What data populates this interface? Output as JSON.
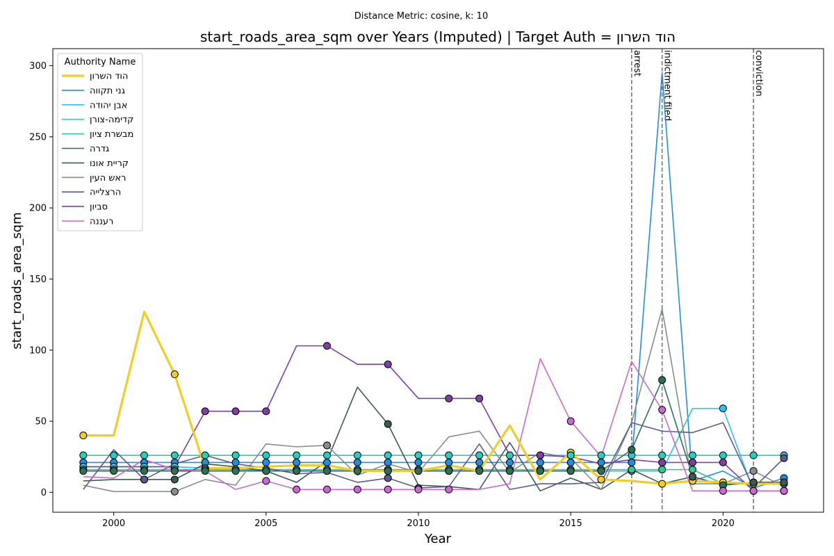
{
  "chart_data": {
    "type": "line",
    "suptitle": "Distance Metric: cosine, k: 10",
    "title": "start_roads_area_sqm over Years (Imputed) | Target Auth = הוד השרון",
    "xlabel": "Year",
    "ylabel": "start_roads_area_sqm",
    "xlim": [
      1998,
      2023.3
    ],
    "ylim": [
      -14,
      312
    ],
    "xticks": [
      2000,
      2005,
      2010,
      2015,
      2020
    ],
    "yticks": [
      0,
      50,
      100,
      150,
      200,
      250,
      300
    ],
    "grid": false,
    "legend": {
      "title": "Authority Name",
      "position": "top-left"
    },
    "events": [
      {
        "x": 2017,
        "label": "arrest"
      },
      {
        "x": 2018,
        "label": "indictment filed"
      },
      {
        "x": 2021,
        "label": "conviction"
      }
    ],
    "x": [
      1999,
      2000,
      2001,
      2002,
      2003,
      2004,
      2005,
      2006,
      2007,
      2008,
      2009,
      2010,
      2011,
      2012,
      2013,
      2014,
      2015,
      2016,
      2017,
      2018,
      2019,
      2020,
      2021,
      2022
    ],
    "series": [
      {
        "name": "הוד השרון",
        "color": "#f2cd24",
        "target": true,
        "values": [
          40,
          40,
          127,
          83,
          17,
          17,
          18,
          19,
          19,
          15,
          15,
          15,
          19,
          15,
          47,
          9,
          28,
          9,
          8,
          6,
          8,
          7,
          6,
          6
        ],
        "markers": [
          0,
          3,
          16,
          17,
          19,
          20,
          21,
          22,
          23
        ]
      },
      {
        "name": "גני תקווה",
        "color": "#1f8de0",
        "values": [
          21,
          21,
          21,
          21,
          21,
          21,
          21,
          21,
          21,
          21,
          21,
          21,
          21,
          21,
          21,
          21,
          21,
          21,
          21,
          295,
          8,
          15,
          3,
          10
        ],
        "markers": [
          0,
          1,
          2,
          3,
          4,
          5,
          6,
          7,
          8,
          9,
          10,
          11,
          12,
          13,
          14,
          15,
          16,
          17,
          18,
          23
        ]
      },
      {
        "name": "אבן יהודה",
        "color": "#2ac2f0",
        "values": [
          18,
          18,
          18,
          18,
          17,
          16,
          15,
          15,
          15,
          15,
          15,
          15,
          15,
          15,
          15,
          15,
          15,
          15,
          15,
          15,
          59,
          59,
          1,
          1
        ],
        "markers": [
          0,
          1,
          2,
          3,
          4,
          5,
          6,
          7,
          8,
          9,
          10,
          11,
          12,
          13,
          14,
          15,
          16,
          17,
          18,
          21,
          23
        ]
      },
      {
        "name": "קדימה-צורן",
        "color": "#1fd2c0",
        "values": [
          26,
          26,
          26,
          26,
          26,
          26,
          26,
          26,
          26,
          26,
          26,
          26,
          26,
          26,
          26,
          26,
          26,
          26,
          26,
          26,
          26,
          26,
          26,
          26
        ],
        "markers": [
          0,
          1,
          2,
          3,
          4,
          5,
          6,
          7,
          8,
          9,
          10,
          11,
          12,
          13,
          14,
          15,
          16,
          17,
          18,
          19,
          20,
          21,
          22,
          23
        ]
      },
      {
        "name": "מבשרת ציון",
        "color": "#2fc79b",
        "values": [
          16,
          16,
          16,
          16,
          16,
          16,
          16,
          16,
          16,
          16,
          16,
          16,
          16,
          16,
          16,
          16,
          16,
          16,
          16,
          16,
          16,
          6,
          6,
          6
        ],
        "markers": [
          0,
          1,
          2,
          3,
          4,
          5,
          6,
          7,
          8,
          9,
          10,
          11,
          12,
          13,
          14,
          15,
          16,
          17,
          18,
          19,
          20,
          23
        ]
      },
      {
        "name": "גדרה",
        "color": "#2e7056",
        "values": [
          15,
          15,
          15,
          15,
          15,
          15,
          15,
          15,
          15,
          15,
          15,
          15,
          15,
          15,
          15,
          15,
          15,
          15,
          30,
          79,
          11,
          5,
          7,
          7
        ],
        "markers": [
          0,
          1,
          2,
          3,
          4,
          5,
          6,
          7,
          8,
          9,
          10,
          11,
          12,
          13,
          14,
          15,
          16,
          17,
          18,
          19,
          20,
          21,
          22,
          23
        ]
      },
      {
        "name": "קריית אונו",
        "color": "#3b5b52",
        "values": [
          8,
          9,
          9,
          9,
          20,
          18,
          15,
          7,
          22,
          74,
          48,
          5,
          4,
          2,
          35,
          1,
          10,
          2,
          16,
          6,
          11,
          5,
          7,
          7
        ],
        "markers": [
          2,
          3,
          10,
          20,
          22,
          23
        ]
      },
      {
        "name": "ראש העין",
        "color": "#858e8b",
        "values": [
          5,
          0.5,
          0.6,
          0.5,
          9,
          5,
          34,
          32,
          33,
          12,
          20,
          14,
          39,
          43,
          14,
          28,
          24,
          2,
          49,
          129,
          6,
          6,
          15,
          4
        ],
        "markers": [
          3,
          8,
          22
        ]
      },
      {
        "name": "הרצלייה",
        "color": "#5a5a96",
        "values": [
          2,
          30,
          9,
          20,
          26,
          20,
          17,
          13,
          14,
          7,
          10,
          3,
          4,
          34,
          2,
          6,
          6,
          7,
          49,
          43,
          42,
          49,
          3,
          24
        ],
        "markers": [
          2,
          10,
          11,
          23
        ]
      },
      {
        "name": "סביון",
        "color": "#7f3fa8",
        "values": [
          18,
          18,
          18,
          18,
          57,
          57,
          57,
          103,
          103,
          90,
          90,
          66,
          66,
          66,
          26,
          26,
          25,
          20,
          23,
          21,
          21,
          21,
          1,
          1
        ],
        "markers": [
          4,
          5,
          6,
          8,
          10,
          12,
          13,
          15,
          19,
          20,
          21,
          22,
          23
        ]
      },
      {
        "name": "רעננה",
        "color": "#c86ad0",
        "values": [
          11,
          10,
          23,
          16,
          15,
          2,
          8,
          2,
          2,
          2,
          2,
          2,
          2,
          2,
          6,
          94,
          50,
          25,
          92,
          58,
          1,
          1,
          1,
          1
        ],
        "markers": [
          6,
          7,
          8,
          9,
          10,
          11,
          12,
          16,
          19,
          21,
          22,
          23
        ]
      }
    ]
  }
}
